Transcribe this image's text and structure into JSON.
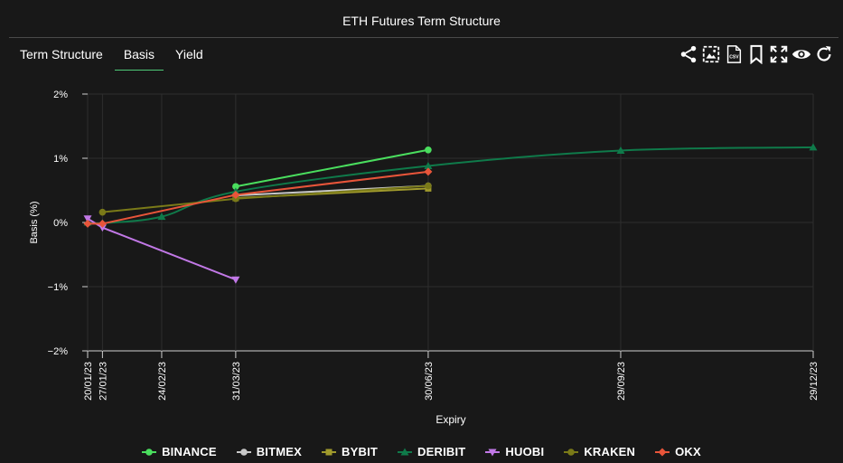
{
  "title": "ETH Futures Term Structure",
  "tabs": [
    {
      "label": "Term Structure"
    },
    {
      "label": "Basis"
    },
    {
      "label": "Yield"
    }
  ],
  "active_tab": "Basis",
  "toolbar": [
    "share-icon",
    "image-export-icon",
    "csv-export-icon",
    "bookmark-icon",
    "fullscreen-icon",
    "eye-icon",
    "refresh-icon"
  ],
  "toolbar_csv_label": "CSV",
  "chart_data": {
    "type": "line",
    "xlabel": "Expiry",
    "ylabel": "Basis (%)",
    "ylim": [
      -2,
      2
    ],
    "yticks": [
      2,
      1,
      0,
      -1,
      -2
    ],
    "ytick_labels": [
      "2%",
      "1%",
      "0%",
      "−1%",
      "−2%"
    ],
    "xlim": [
      "2023-01-20",
      "2023-12-29"
    ],
    "xticks": [
      "2023-01-20",
      "2023-01-27",
      "2023-02-24",
      "2023-03-31",
      "2023-06-30",
      "2023-09-29",
      "2023-12-29"
    ],
    "xtick_labels": [
      "20/01/23",
      "27/01/23",
      "24/02/23",
      "31/03/23",
      "30/06/23",
      "29/09/23",
      "29/12/23"
    ],
    "grid": true,
    "legend_position": "bottom",
    "series": [
      {
        "name": "BINANCE",
        "color": "#4ade5e",
        "marker": "circle",
        "x": [
          "2023-03-31",
          "2023-06-30"
        ],
        "y": [
          0.56,
          1.13
        ]
      },
      {
        "name": "BITMEX",
        "color": "#c8c8c8",
        "marker": "circle",
        "x": [
          "2023-03-31",
          "2023-06-30"
        ],
        "y": [
          0.42,
          0.57
        ]
      },
      {
        "name": "BYBIT",
        "color": "#a09a2c",
        "marker": "square",
        "x": [
          "2023-03-31",
          "2023-06-30"
        ],
        "y": [
          0.38,
          0.53
        ]
      },
      {
        "name": "DERIBIT",
        "color": "#0f7a4a",
        "marker": "triangle",
        "smooth": true,
        "x": [
          "2023-01-20",
          "2023-01-27",
          "2023-02-24",
          "2023-03-31",
          "2023-06-30",
          "2023-09-29",
          "2023-12-29"
        ],
        "y": [
          0.0,
          -0.01,
          0.09,
          0.48,
          0.88,
          1.12,
          1.17
        ]
      },
      {
        "name": "HUOBI",
        "color": "#c178e6",
        "marker": "triangle-down",
        "x": [
          "2023-01-20",
          "2023-01-27",
          "2023-03-31"
        ],
        "y": [
          0.06,
          -0.08,
          -0.89
        ]
      },
      {
        "name": "KRAKEN",
        "color": "#7a7a18",
        "marker": "circle",
        "x": [
          "2023-01-27",
          "2023-03-31",
          "2023-06-30"
        ],
        "y": [
          0.16,
          0.37,
          0.57
        ]
      },
      {
        "name": "OKX",
        "color": "#e8553a",
        "marker": "diamond",
        "x": [
          "2023-01-20",
          "2023-01-27",
          "2023-03-31",
          "2023-06-30"
        ],
        "y": [
          -0.02,
          -0.02,
          0.43,
          0.79
        ]
      }
    ]
  }
}
